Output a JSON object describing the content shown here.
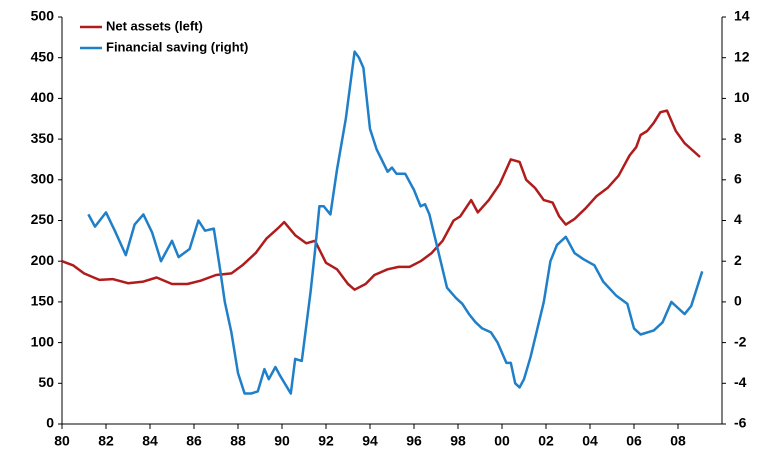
{
  "chart_data": {
    "type": "line",
    "xlim": [
      1980,
      2010
    ],
    "xticks": [
      {
        "value": 1980,
        "label": "80"
      },
      {
        "value": 1982,
        "label": "82"
      },
      {
        "value": 1984,
        "label": "84"
      },
      {
        "value": 1986,
        "label": "86"
      },
      {
        "value": 1988,
        "label": "88"
      },
      {
        "value": 1990,
        "label": "90"
      },
      {
        "value": 1992,
        "label": "92"
      },
      {
        "value": 1994,
        "label": "94"
      },
      {
        "value": 1996,
        "label": "96"
      },
      {
        "value": 1998,
        "label": "98"
      },
      {
        "value": 2000,
        "label": "00"
      },
      {
        "value": 2002,
        "label": "02"
      },
      {
        "value": 2004,
        "label": "04"
      },
      {
        "value": 2006,
        "label": "06"
      },
      {
        "value": 2008,
        "label": "08"
      }
    ],
    "ylim": [
      0,
      500
    ],
    "yticks": [
      0,
      50,
      100,
      150,
      200,
      250,
      300,
      350,
      400,
      450,
      500
    ],
    "y2lim": [
      -6,
      14
    ],
    "y2ticks": [
      -6,
      -4,
      -2,
      0,
      2,
      4,
      6,
      8,
      10,
      12,
      14
    ],
    "legend": "top-left",
    "series": [
      {
        "name": "Net assets (left)",
        "color": "#b01c1c",
        "axis": "y",
        "x": [
          1980,
          1980.5,
          1981,
          1981.7,
          1982.3,
          1983,
          1983.7,
          1984.3,
          1985,
          1985.7,
          1986.3,
          1987,
          1987.7,
          1988.2,
          1988.8,
          1989.3,
          1989.8,
          1990.1,
          1990.6,
          1991.1,
          1991.5,
          1992,
          1992.5,
          1993,
          1993.3,
          1993.8,
          1994.2,
          1994.8,
          1995.3,
          1995.8,
          1996.3,
          1996.8,
          1997.3,
          1997.8,
          1998.1,
          1998.6,
          1998.9,
          1999.4,
          1999.9,
          2000.4,
          2000.8,
          2001.1,
          2001.5,
          2001.9,
          2002.3,
          2002.6,
          2002.9,
          2003.3,
          2003.8,
          2004.3,
          2004.8,
          2005.3,
          2005.8,
          2006.1,
          2006.3,
          2006.6,
          2006.9,
          2007.2,
          2007.5,
          2007.9,
          2008.3,
          2009
        ],
        "values": [
          200,
          195,
          185,
          177,
          178,
          173,
          175,
          180,
          172,
          172,
          176,
          183,
          185,
          195,
          210,
          228,
          240,
          248,
          232,
          222,
          225,
          198,
          190,
          172,
          165,
          172,
          183,
          190,
          193,
          193,
          200,
          210,
          225,
          250,
          255,
          275,
          260,
          275,
          295,
          325,
          322,
          300,
          290,
          275,
          272,
          255,
          245,
          252,
          265,
          280,
          290,
          305,
          330,
          340,
          355,
          360,
          370,
          383,
          385,
          360,
          345,
          328
        ]
      },
      {
        "name": "Financial saving (right)",
        "color": "#1f7fc8",
        "axis": "y2",
        "x": [
          1981.2,
          1981.5,
          1982.0,
          1982.4,
          1982.9,
          1983.3,
          1983.7,
          1984.1,
          1984.5,
          1985.0,
          1985.3,
          1985.8,
          1986.2,
          1986.5,
          1986.9,
          1987.2,
          1987.4,
          1987.7,
          1988.0,
          1988.3,
          1988.6,
          1988.9,
          1989.2,
          1989.4,
          1989.7,
          1989.9,
          1990.4,
          1990.6,
          1990.9,
          1991.3,
          1991.5,
          1991.7,
          1991.9,
          1992.2,
          1992.5,
          1992.9,
          1993.3,
          1993.5,
          1993.7,
          1994.0,
          1994.3,
          1994.8,
          1995.0,
          1995.2,
          1995.6,
          1996.0,
          1996.3,
          1996.5,
          1996.7,
          1997.1,
          1997.5,
          1997.9,
          1998.2,
          1998.5,
          1998.8,
          1999.1,
          1999.5,
          1999.8,
          2000.2,
          2000.4,
          2000.6,
          2000.8,
          2001.0,
          2001.3,
          2001.9,
          2002.2,
          2002.5,
          2002.9,
          2003.3,
          2003.7,
          2004.2,
          2004.6,
          2005.2,
          2005.7,
          2006.0,
          2006.3,
          2006.9,
          2007.3,
          2007.7,
          2008.0,
          2008.3,
          2008.6,
          2009.1
        ],
        "values": [
          4.3,
          3.7,
          4.4,
          3.5,
          2.3,
          3.8,
          4.3,
          3.4,
          2.0,
          3.0,
          2.2,
          2.6,
          4.0,
          3.5,
          3.6,
          1.5,
          0.0,
          -1.5,
          -3.5,
          -4.5,
          -4.5,
          -4.4,
          -3.3,
          -3.8,
          -3.2,
          -3.6,
          -4.5,
          -2.8,
          -2.9,
          0.5,
          2.5,
          4.7,
          4.7,
          4.3,
          6.5,
          9.0,
          12.3,
          12.0,
          11.5,
          8.5,
          7.5,
          6.4,
          6.6,
          6.3,
          6.3,
          5.5,
          4.7,
          4.8,
          4.3,
          2.5,
          0.7,
          0.2,
          -0.1,
          -0.6,
          -1.0,
          -1.3,
          -1.5,
          -2.0,
          -3.0,
          -3.0,
          -4.0,
          -4.2,
          -3.8,
          -2.7,
          0.0,
          2.0,
          2.8,
          3.2,
          2.4,
          2.1,
          1.8,
          1.0,
          0.3,
          -0.1,
          -1.3,
          -1.6,
          -1.4,
          -1.0,
          0.0,
          -0.3,
          -0.6,
          -0.2,
          1.5
        ]
      }
    ]
  }
}
